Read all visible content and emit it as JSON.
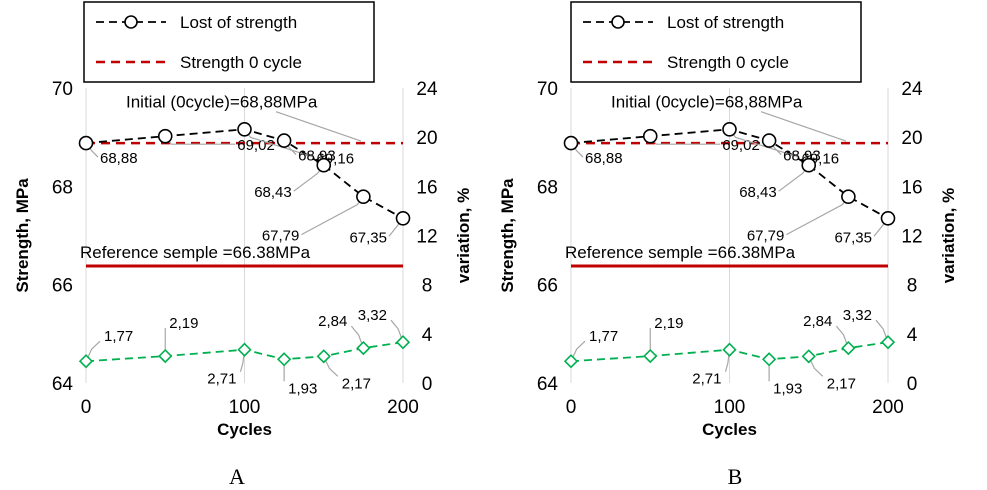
{
  "chart_data": [
    {
      "type": "line",
      "panel_label": "A",
      "xlabel": "Cycles",
      "ylabel": "Strength, MPa",
      "y2label": "variation, %",
      "xlim": [
        0,
        200
      ],
      "ylim": [
        64,
        70
      ],
      "y2lim": [
        0,
        24
      ],
      "x_ticks": [
        0,
        100,
        200
      ],
      "y_ticks": [
        64,
        66,
        68,
        70
      ],
      "y2_ticks": [
        0,
        4,
        8,
        12,
        16,
        20,
        24
      ],
      "grid": "vertical",
      "legend_position": "top",
      "series": [
        {
          "name": "Lost of strength",
          "axis": "left",
          "style": "dashed-black-circle",
          "color": "#000000",
          "x": [
            0,
            50,
            100,
            125,
            150,
            175,
            200
          ],
          "values": [
            68.88,
            69.02,
            69.16,
            68.93,
            68.43,
            67.79,
            67.35
          ],
          "data_labels": [
            "68,88",
            "69,02",
            "69,16",
            "68,93",
            "68,43",
            "67,79",
            "67,35"
          ]
        },
        {
          "name": "Strength 0 cycle",
          "axis": "left",
          "style": "dashed-red-line",
          "color": "#c00000",
          "x": [
            0,
            200
          ],
          "values": [
            68.88,
            68.88
          ]
        },
        {
          "axis": "right",
          "style": "dashed-green-diamond",
          "color": "#00b050",
          "x": [
            0,
            50,
            100,
            125,
            150,
            175,
            200
          ],
          "values": [
            1.77,
            2.19,
            2.71,
            1.93,
            2.17,
            2.84,
            3.32
          ],
          "data_labels": [
            "1,77",
            "2,19",
            "2,71",
            "1,93",
            "2,17",
            "2,84",
            "3,32"
          ]
        },
        {
          "axis": "left",
          "style": "solid-darkred-line",
          "color": "#c00000",
          "x": [
            0,
            200
          ],
          "values": [
            66.38,
            66.38
          ]
        }
      ],
      "annotations": [
        "Initial (0cycle)=68,88MPa",
        "Reference semple =66.38MPa"
      ]
    },
    {
      "type": "line",
      "panel_label": "B",
      "xlabel": "Cycles",
      "ylabel": "Strength, MPa",
      "y2label": "variation, %",
      "xlim": [
        0,
        200
      ],
      "ylim": [
        64,
        70
      ],
      "y2lim": [
        0,
        24
      ],
      "x_ticks": [
        0,
        100,
        200
      ],
      "y_ticks": [
        64,
        66,
        68,
        70
      ],
      "y2_ticks": [
        0,
        4,
        8,
        12,
        16,
        20,
        24
      ],
      "grid": "vertical",
      "legend_position": "top",
      "series": [
        {
          "name": "Lost of strength",
          "axis": "left",
          "style": "dashed-black-circle",
          "color": "#000000",
          "x": [
            0,
            50,
            100,
            125,
            150,
            175,
            200
          ],
          "values": [
            68.88,
            69.02,
            69.16,
            68.93,
            68.43,
            67.79,
            67.35
          ],
          "data_labels": [
            "68,88",
            "69,02",
            "69,16",
            "68,93",
            "68,43",
            "67,79",
            "67,35"
          ]
        },
        {
          "name": "Strength 0 cycle",
          "axis": "left",
          "style": "dashed-red-line",
          "color": "#c00000",
          "x": [
            0,
            200
          ],
          "values": [
            68.88,
            68.88
          ]
        },
        {
          "axis": "right",
          "style": "dashed-green-diamond",
          "color": "#00b050",
          "x": [
            0,
            50,
            100,
            125,
            150,
            175,
            200
          ],
          "values": [
            1.77,
            2.19,
            2.71,
            1.93,
            2.17,
            2.84,
            3.32
          ],
          "data_labels": [
            "1,77",
            "2,19",
            "2,71",
            "1,93",
            "2,17",
            "2,84",
            "3,32"
          ]
        },
        {
          "axis": "left",
          "style": "solid-darkred-line",
          "color": "#c00000",
          "x": [
            0,
            200
          ],
          "values": [
            66.38,
            66.38
          ]
        }
      ],
      "annotations": [
        "Initial (0cycle)=68,88MPa",
        "Reference semple =66.38MPa"
      ]
    }
  ]
}
